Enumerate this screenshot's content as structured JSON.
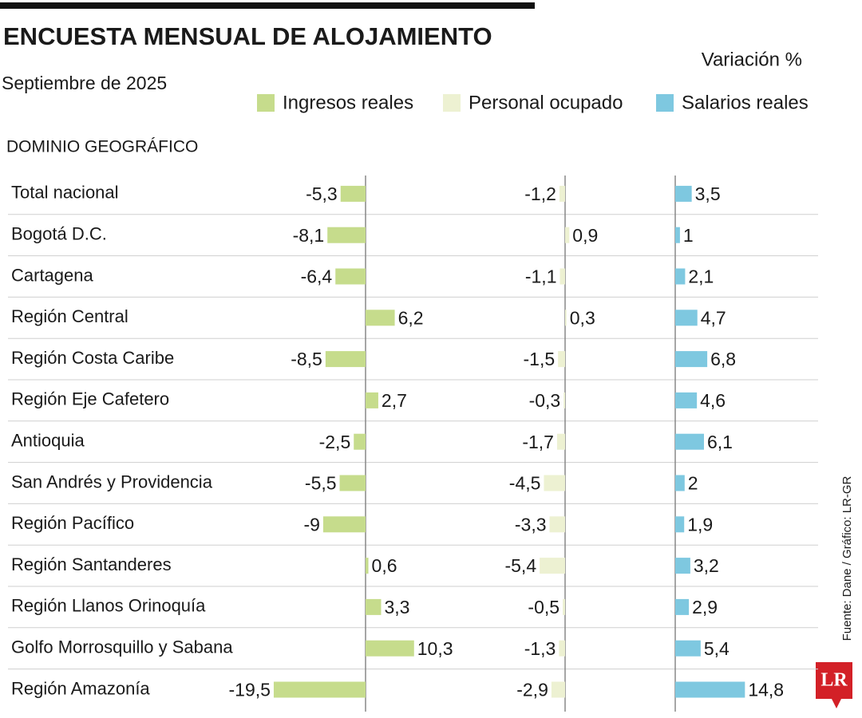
{
  "chart_data": {
    "type": "bar",
    "title": "ENCUESTA MENSUAL DE ALOJAMIENTO",
    "subtitle": "Septiembre de 2025",
    "unit_label": "Variación %",
    "category_header": "DOMINIO GEOGRÁFICO",
    "source": "Fuente: Dane / Gráfico: LR-GR",
    "logo": "LR",
    "categories": [
      "Total nacional",
      "Bogotá D.C.",
      "Cartagena",
      "Región Central",
      "Región Costa Caribe",
      "Región Eje Cafetero",
      "Antioquia",
      "San Andrés y Providencia",
      "Región Pacífico",
      "Región Santanderes",
      "Región Llanos Orinoquía",
      "Golfo Morrosquillo y Sabana",
      "Región Amazonía"
    ],
    "series": [
      {
        "name": "Ingresos reales",
        "color": "#c6dc8c",
        "values": [
          -5.3,
          -8.1,
          -6.4,
          6.2,
          -8.5,
          2.7,
          -2.5,
          -5.5,
          -9,
          0.6,
          3.3,
          10.3,
          -19.5
        ],
        "value_labels": [
          "-5,3",
          "-8,1",
          "-6,4",
          "6,2",
          "-8,5",
          "2,7",
          "-2,5",
          "-5,5",
          "-9",
          "0,6",
          "3,3",
          "10,3",
          "-19,5"
        ]
      },
      {
        "name": "Personal ocupado",
        "color": "#edf1d2",
        "values": [
          -1.2,
          0.9,
          -1.1,
          0.3,
          -1.5,
          -0.3,
          -1.7,
          -4.5,
          -3.3,
          -5.4,
          -0.5,
          -1.3,
          -2.9
        ],
        "value_labels": [
          "-1,2",
          "0,9",
          "-1,1",
          "0,3",
          "-1,5",
          "-0,3",
          "-1,7",
          "-4,5",
          "-3,3",
          "-5,4",
          "-0,5",
          "-1,3",
          "-2,9"
        ]
      },
      {
        "name": "Salarios reales",
        "color": "#7ec8e0",
        "values": [
          3.5,
          1,
          2.1,
          4.7,
          6.8,
          4.6,
          6.1,
          2,
          1.9,
          3.2,
          2.9,
          5.4,
          14.8
        ],
        "value_labels": [
          "3,5",
          "1",
          "2,1",
          "4,7",
          "6,8",
          "4,6",
          "6,1",
          "2",
          "1,9",
          "3,2",
          "2,9",
          "5,4",
          "14,8"
        ]
      }
    ]
  }
}
